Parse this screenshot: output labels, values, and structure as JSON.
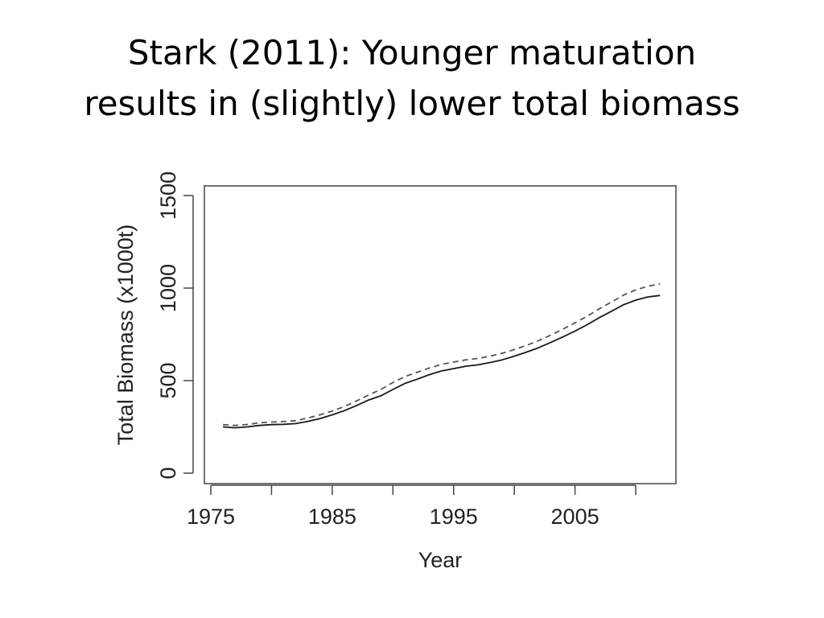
{
  "slide": {
    "title_line1": "Stark (2011): Younger maturation",
    "title_line2": "results in (slightly) lower total biomass"
  },
  "chart_data": {
    "type": "line",
    "xlabel": "Year",
    "ylabel": "Total Biomass (x1000t)",
    "xlim": [
      1975,
      2012
    ],
    "ylim": [
      0,
      1500
    ],
    "x_ticks": [
      1975,
      1980,
      1985,
      1990,
      1995,
      2000,
      2005,
      2010
    ],
    "x_tick_labels": [
      "1975",
      "",
      "1985",
      "",
      "1995",
      "",
      "2005",
      ""
    ],
    "y_ticks": [
      0,
      500,
      1000,
      1500
    ],
    "y_tick_labels": [
      "0",
      "500",
      "1000",
      "1500"
    ],
    "grid": false,
    "legend": "none",
    "series": [
      {
        "style": "solid",
        "color": "#1a1a1a",
        "x": [
          1976,
          1977,
          1978,
          1979,
          1980,
          1981,
          1982,
          1983,
          1984,
          1985,
          1986,
          1987,
          1988,
          1989,
          1990,
          1991,
          1992,
          1993,
          1994,
          1995,
          1996,
          1997,
          1998,
          1999,
          2000,
          2001,
          2002,
          2003,
          2004,
          2005,
          2006,
          2007,
          2008,
          2009,
          2010,
          2011,
          2012
        ],
        "values": [
          250,
          245,
          250,
          258,
          262,
          264,
          268,
          280,
          295,
          315,
          338,
          365,
          395,
          418,
          452,
          485,
          508,
          532,
          552,
          565,
          578,
          585,
          598,
          612,
          632,
          654,
          678,
          706,
          736,
          768,
          802,
          840,
          875,
          910,
          935,
          952,
          960
        ]
      },
      {
        "style": "dashed",
        "color": "#555555",
        "x": [
          1976,
          1977,
          1978,
          1979,
          1980,
          1981,
          1982,
          1983,
          1984,
          1985,
          1986,
          1987,
          1988,
          1989,
          1990,
          1991,
          1992,
          1993,
          1994,
          1995,
          1996,
          1997,
          1998,
          1999,
          2000,
          2001,
          2002,
          2003,
          2004,
          2005,
          2006,
          2007,
          2008,
          2009,
          2010,
          2011,
          2012
        ],
        "values": [
          262,
          258,
          263,
          272,
          276,
          279,
          284,
          298,
          315,
          335,
          360,
          390,
          422,
          452,
          490,
          522,
          545,
          568,
          588,
          600,
          612,
          620,
          632,
          648,
          668,
          690,
          716,
          746,
          778,
          812,
          848,
          888,
          925,
          962,
          990,
          1010,
          1022
        ]
      }
    ]
  }
}
